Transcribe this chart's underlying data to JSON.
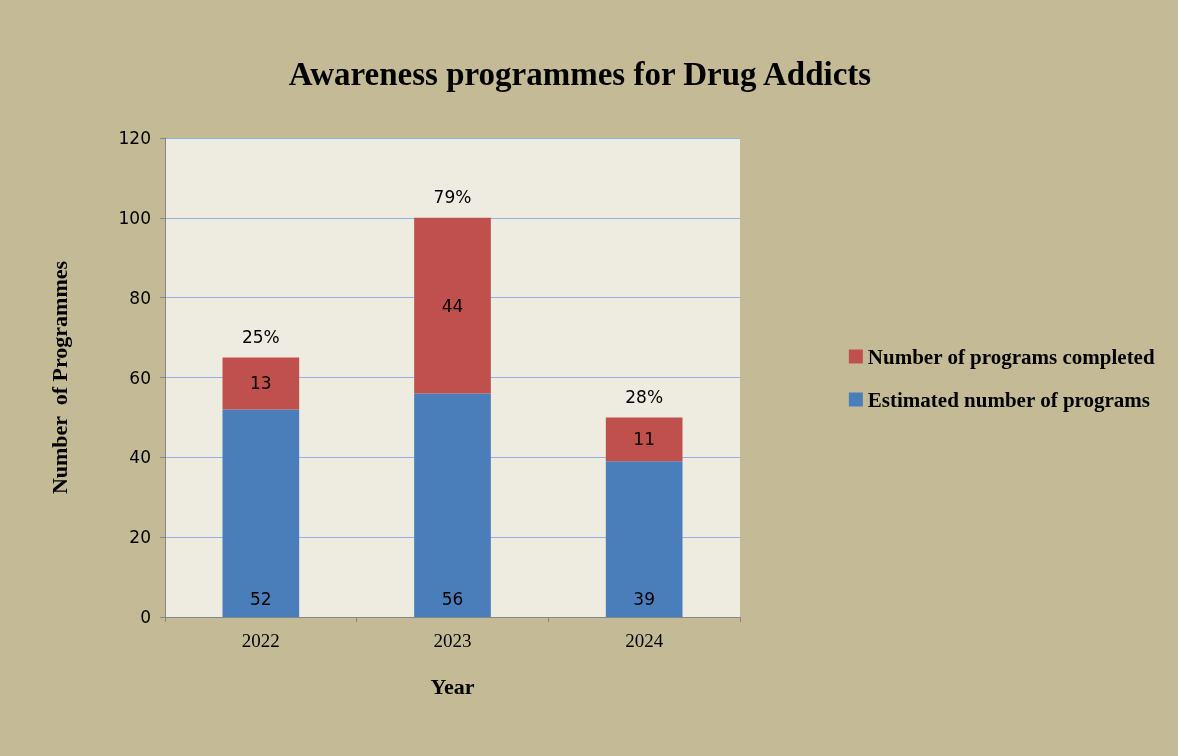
{
  "chart_data": {
    "type": "bar",
    "title": "Awareness programmes for Drug Addicts",
    "xlabel": "Year",
    "ylabel": "Number  of Programmes",
    "categories": [
      "2022",
      "2023",
      "2024"
    ],
    "series": [
      {
        "name": "Estimated number of programs",
        "color": "#4a7ebb",
        "values": [
          52,
          56,
          39
        ]
      },
      {
        "name": "Number of programs completed",
        "color": "#c0504d",
        "values": [
          13,
          44,
          11
        ]
      }
    ],
    "stacked": true,
    "data_labels": true,
    "annotations": [
      {
        "text": "25%",
        "x": "2022",
        "y": 65
      },
      {
        "text": "79%",
        "x": "2023",
        "y": 100
      },
      {
        "text": "28%",
        "x": "2024",
        "y": 50
      }
    ],
    "ylim": [
      0,
      120
    ],
    "yticks": [
      0,
      20,
      40,
      60,
      80,
      100,
      120
    ],
    "grid": "y",
    "legend": "right"
  }
}
